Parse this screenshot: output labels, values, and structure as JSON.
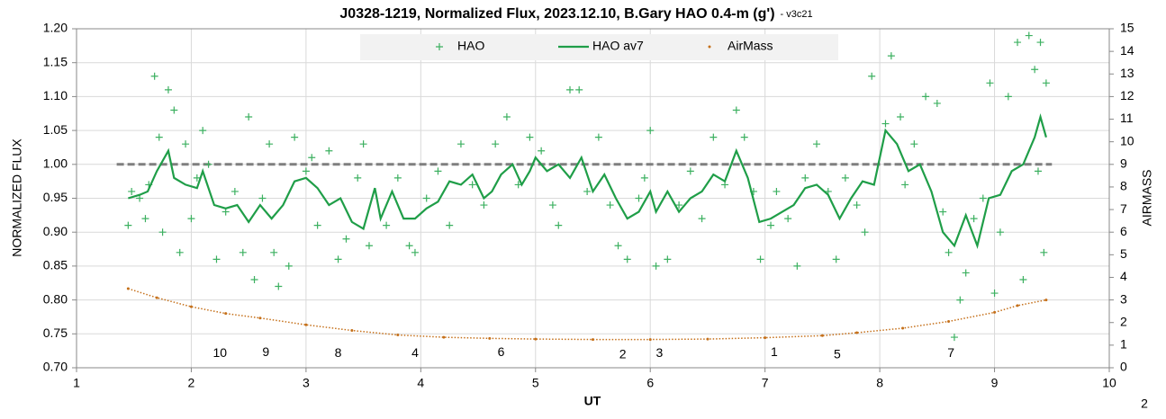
{
  "chart_data": {
    "type": "scatter",
    "title": "J0328-1219, Normalized Flux, 2023.12.10, B.Gary HAO 0.4-m (g')",
    "subtitle": "- v3c21",
    "x_label": "UT",
    "y_label": "NORMALIZED FLUX",
    "y2_label": "AIRMASS",
    "footnote": "2",
    "grid": true,
    "legend": "top",
    "xlim": [
      1,
      10
    ],
    "xticks": [
      1,
      2,
      3,
      4,
      5,
      6,
      7,
      8,
      9,
      10
    ],
    "ylim": [
      0.7,
      1.2
    ],
    "yticks": [
      {
        "value": 0.7,
        "label": "0.70"
      },
      {
        "value": 0.75,
        "label": "0.75"
      },
      {
        "value": 0.8,
        "label": "0.80"
      },
      {
        "value": 0.85,
        "label": "0.85"
      },
      {
        "value": 0.9,
        "label": "0.90"
      },
      {
        "value": 0.95,
        "label": "0.95"
      },
      {
        "value": 1.0,
        "label": "1.00"
      },
      {
        "value": 1.05,
        "label": "1.05"
      },
      {
        "value": 1.1,
        "label": "1.10"
      },
      {
        "value": 1.15,
        "label": "1.15"
      },
      {
        "value": 1.2,
        "label": "1.20"
      }
    ],
    "y2lim": [
      0,
      15
    ],
    "y2ticks": [
      0,
      1,
      2,
      3,
      4,
      5,
      6,
      7,
      8,
      9,
      10,
      11,
      12,
      13,
      14,
      15
    ],
    "reference_line": {
      "y": 1.0,
      "x": [
        1.35,
        9.5
      ],
      "color": "#7f7f7f"
    },
    "series": [
      {
        "name": "HAO",
        "mode": "plus",
        "color": "#3cb060",
        "x": [
          1.45,
          1.48,
          1.55,
          1.6,
          1.63,
          1.68,
          1.72,
          1.75,
          1.8,
          1.85,
          1.9,
          1.95,
          2.0,
          2.05,
          2.1,
          2.15,
          2.22,
          2.3,
          2.38,
          2.45,
          2.5,
          2.55,
          2.62,
          2.68,
          2.72,
          2.76,
          2.85,
          2.9,
          3.0,
          3.05,
          3.1,
          3.2,
          3.28,
          3.35,
          3.45,
          3.5,
          3.55,
          3.7,
          3.8,
          3.9,
          3.95,
          4.05,
          4.15,
          4.25,
          4.35,
          4.45,
          4.55,
          4.65,
          4.75,
          4.85,
          4.95,
          5.05,
          5.15,
          5.2,
          5.3,
          5.38,
          5.45,
          5.55,
          5.65,
          5.72,
          5.8,
          5.9,
          5.95,
          6.0,
          6.05,
          6.15,
          6.25,
          6.35,
          6.45,
          6.55,
          6.65,
          6.75,
          6.82,
          6.9,
          6.96,
          7.05,
          7.1,
          7.2,
          7.28,
          7.35,
          7.45,
          7.55,
          7.62,
          7.7,
          7.8,
          7.87,
          7.93,
          8.05,
          8.1,
          8.18,
          8.22,
          8.3,
          8.4,
          8.5,
          8.55,
          8.6,
          8.65,
          8.7,
          8.75,
          8.82,
          8.9,
          8.96,
          9.0,
          9.05,
          9.12,
          9.2,
          9.25,
          9.3,
          9.35,
          9.38,
          9.4,
          9.43,
          9.45
        ],
        "values": [
          0.91,
          0.96,
          0.95,
          0.92,
          0.97,
          1.13,
          1.04,
          0.9,
          1.11,
          1.08,
          0.87,
          1.03,
          0.92,
          0.98,
          1.05,
          1.0,
          0.86,
          0.93,
          0.96,
          0.87,
          1.07,
          0.83,
          0.95,
          1.03,
          0.87,
          0.82,
          0.85,
          1.04,
          0.99,
          1.01,
          0.91,
          1.02,
          0.86,
          0.89,
          0.98,
          1.03,
          0.88,
          0.91,
          0.98,
          0.88,
          0.87,
          0.95,
          0.99,
          0.91,
          1.03,
          0.97,
          0.94,
          1.03,
          1.07,
          0.97,
          1.04,
          1.02,
          0.94,
          0.91,
          1.11,
          1.11,
          0.96,
          1.04,
          0.94,
          0.88,
          0.86,
          0.95,
          0.98,
          1.05,
          0.85,
          0.86,
          0.94,
          0.99,
          0.92,
          1.04,
          0.97,
          1.08,
          1.04,
          0.96,
          0.86,
          0.91,
          0.96,
          0.92,
          0.85,
          0.98,
          1.03,
          0.96,
          0.86,
          0.98,
          0.94,
          0.9,
          1.13,
          1.06,
          1.16,
          1.07,
          0.97,
          1.03,
          1.1,
          1.09,
          0.93,
          0.87,
          0.745,
          0.8,
          0.84,
          0.92,
          0.95,
          1.12,
          0.81,
          0.9,
          1.1,
          1.18,
          0.83,
          1.19,
          1.14,
          0.99,
          1.18,
          0.87,
          1.12
        ]
      },
      {
        "name": "HAO av7",
        "mode": "line",
        "color": "#1f9e48",
        "x": [
          1.45,
          1.55,
          1.62,
          1.7,
          1.8,
          1.85,
          1.95,
          2.05,
          2.1,
          2.2,
          2.3,
          2.4,
          2.5,
          2.6,
          2.7,
          2.8,
          2.9,
          3.0,
          3.1,
          3.2,
          3.3,
          3.4,
          3.5,
          3.6,
          3.65,
          3.75,
          3.85,
          3.95,
          4.05,
          4.15,
          4.25,
          4.35,
          4.45,
          4.55,
          4.62,
          4.7,
          4.8,
          4.88,
          4.95,
          5.0,
          5.1,
          5.2,
          5.3,
          5.4,
          5.5,
          5.6,
          5.7,
          5.8,
          5.9,
          6.0,
          6.05,
          6.15,
          6.25,
          6.35,
          6.45,
          6.55,
          6.65,
          6.75,
          6.85,
          6.95,
          7.05,
          7.15,
          7.25,
          7.35,
          7.45,
          7.55,
          7.65,
          7.75,
          7.85,
          7.95,
          8.05,
          8.15,
          8.25,
          8.35,
          8.45,
          8.55,
          8.65,
          8.75,
          8.85,
          8.95,
          9.05,
          9.15,
          9.25,
          9.35,
          9.4,
          9.45
        ],
        "values": [
          0.95,
          0.955,
          0.96,
          0.99,
          1.02,
          0.98,
          0.97,
          0.965,
          0.99,
          0.94,
          0.935,
          0.94,
          0.915,
          0.94,
          0.92,
          0.94,
          0.975,
          0.98,
          0.965,
          0.94,
          0.95,
          0.915,
          0.905,
          0.965,
          0.92,
          0.96,
          0.92,
          0.92,
          0.935,
          0.945,
          0.975,
          0.97,
          0.985,
          0.95,
          0.96,
          0.985,
          1.0,
          0.97,
          0.99,
          1.01,
          0.99,
          1.0,
          0.98,
          1.01,
          0.96,
          0.985,
          0.95,
          0.92,
          0.93,
          0.96,
          0.93,
          0.96,
          0.93,
          0.95,
          0.96,
          0.985,
          0.975,
          1.02,
          0.98,
          0.915,
          0.92,
          0.93,
          0.94,
          0.965,
          0.97,
          0.955,
          0.92,
          0.95,
          0.975,
          0.97,
          1.05,
          1.03,
          0.99,
          1.0,
          0.96,
          0.9,
          0.88,
          0.925,
          0.88,
          0.95,
          0.955,
          0.99,
          1.0,
          1.04,
          1.07,
          1.04
        ]
      },
      {
        "name": "AirMass",
        "mode": "dots",
        "axis": "y2",
        "color": "#c5701a",
        "x": [
          1.45,
          1.7,
          2.0,
          2.3,
          2.6,
          3.0,
          3.4,
          3.8,
          4.2,
          4.6,
          5.0,
          5.5,
          6.0,
          6.5,
          7.0,
          7.5,
          7.8,
          8.2,
          8.6,
          9.0,
          9.2,
          9.45
        ],
        "values": [
          3.5,
          3.1,
          2.7,
          2.4,
          2.2,
          1.9,
          1.65,
          1.45,
          1.35,
          1.3,
          1.27,
          1.25,
          1.25,
          1.27,
          1.33,
          1.42,
          1.55,
          1.75,
          2.05,
          2.45,
          2.75,
          3.0
        ]
      }
    ],
    "annotations": [
      {
        "text": "10",
        "x": 2.25,
        "y": 0.721
      },
      {
        "text": "9",
        "x": 2.65,
        "y": 0.722
      },
      {
        "text": "8",
        "x": 3.28,
        "y": 0.721
      },
      {
        "text": "4",
        "x": 3.95,
        "y": 0.721
      },
      {
        "text": "6",
        "x": 4.7,
        "y": 0.722
      },
      {
        "text": "2",
        "x": 5.76,
        "y": 0.719
      },
      {
        "text": "3",
        "x": 6.08,
        "y": 0.721
      },
      {
        "text": "1",
        "x": 7.08,
        "y": 0.722
      },
      {
        "text": "5",
        "x": 7.63,
        "y": 0.719
      },
      {
        "text": "7",
        "x": 8.62,
        "y": 0.721
      }
    ]
  }
}
